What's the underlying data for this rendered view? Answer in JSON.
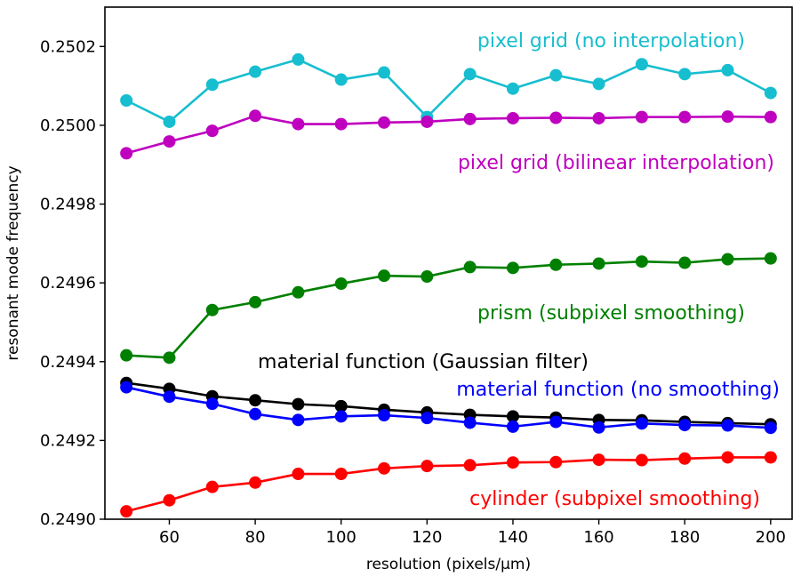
{
  "chart_data": {
    "type": "line",
    "title": "",
    "xlabel": "resolution (pixels/μm)",
    "ylabel": "resonant mode frequency",
    "xlim": [
      45,
      205
    ],
    "ylim": [
      0.249,
      0.2503
    ],
    "xticks": [
      60,
      80,
      100,
      120,
      140,
      160,
      180,
      200
    ],
    "yticks": [
      0.249,
      0.2492,
      0.2494,
      0.2496,
      0.2498,
      0.25,
      0.2502
    ],
    "ytick_labels": [
      "0.2490",
      "0.2492",
      "0.2494",
      "0.2496",
      "0.2498",
      "0.2500",
      "0.2502"
    ],
    "grid": false,
    "legend": "inline labels",
    "x": [
      50,
      60,
      70,
      80,
      90,
      100,
      110,
      120,
      130,
      140,
      150,
      160,
      170,
      180,
      190,
      200
    ],
    "series": [
      {
        "name": "pixel grid (no interpolation)",
        "color": "#17becf",
        "values": [
          0.250063,
          0.250009,
          0.250103,
          0.250136,
          0.250167,
          0.250116,
          0.250134,
          0.250021,
          0.25013,
          0.250093,
          0.250127,
          0.250105,
          0.250155,
          0.25013,
          0.25014,
          0.250082
        ]
      },
      {
        "name": "pixel grid (bilinear interpolation)",
        "color": "#bf00bf",
        "values": [
          0.249929,
          0.249959,
          0.249986,
          0.250024,
          0.250003,
          0.250003,
          0.250007,
          0.250009,
          0.250016,
          0.250018,
          0.250019,
          0.250018,
          0.250021,
          0.250021,
          0.250022,
          0.250021
        ]
      },
      {
        "name": "prism (subpixel smoothing)",
        "color": "#008000",
        "values": [
          0.249416,
          0.24941,
          0.249531,
          0.249551,
          0.249576,
          0.249598,
          0.249618,
          0.249616,
          0.24964,
          0.249638,
          0.249646,
          0.249649,
          0.249654,
          0.249651,
          0.24966,
          0.249662
        ]
      },
      {
        "name": "material function (Gaussian filter)",
        "color": "#000000",
        "values": [
          0.249346,
          0.249331,
          0.249312,
          0.249302,
          0.249292,
          0.249287,
          0.249278,
          0.249271,
          0.249265,
          0.249261,
          0.249258,
          0.249252,
          0.249251,
          0.249247,
          0.249244,
          0.249241
        ]
      },
      {
        "name": "material function (no smoothing)",
        "color": "#0000ff",
        "values": [
          0.249335,
          0.249311,
          0.249293,
          0.249267,
          0.249252,
          0.249261,
          0.249264,
          0.249257,
          0.249245,
          0.249235,
          0.249247,
          0.249233,
          0.249243,
          0.249239,
          0.249238,
          0.249232
        ]
      },
      {
        "name": "cylinder (subpixel smoothing)",
        "color": "#ff0000",
        "values": [
          0.24902,
          0.249048,
          0.249082,
          0.249093,
          0.249115,
          0.249115,
          0.249129,
          0.249135,
          0.249137,
          0.249144,
          0.249145,
          0.249151,
          0.24915,
          0.249154,
          0.249157,
          0.249157
        ]
      }
    ]
  }
}
